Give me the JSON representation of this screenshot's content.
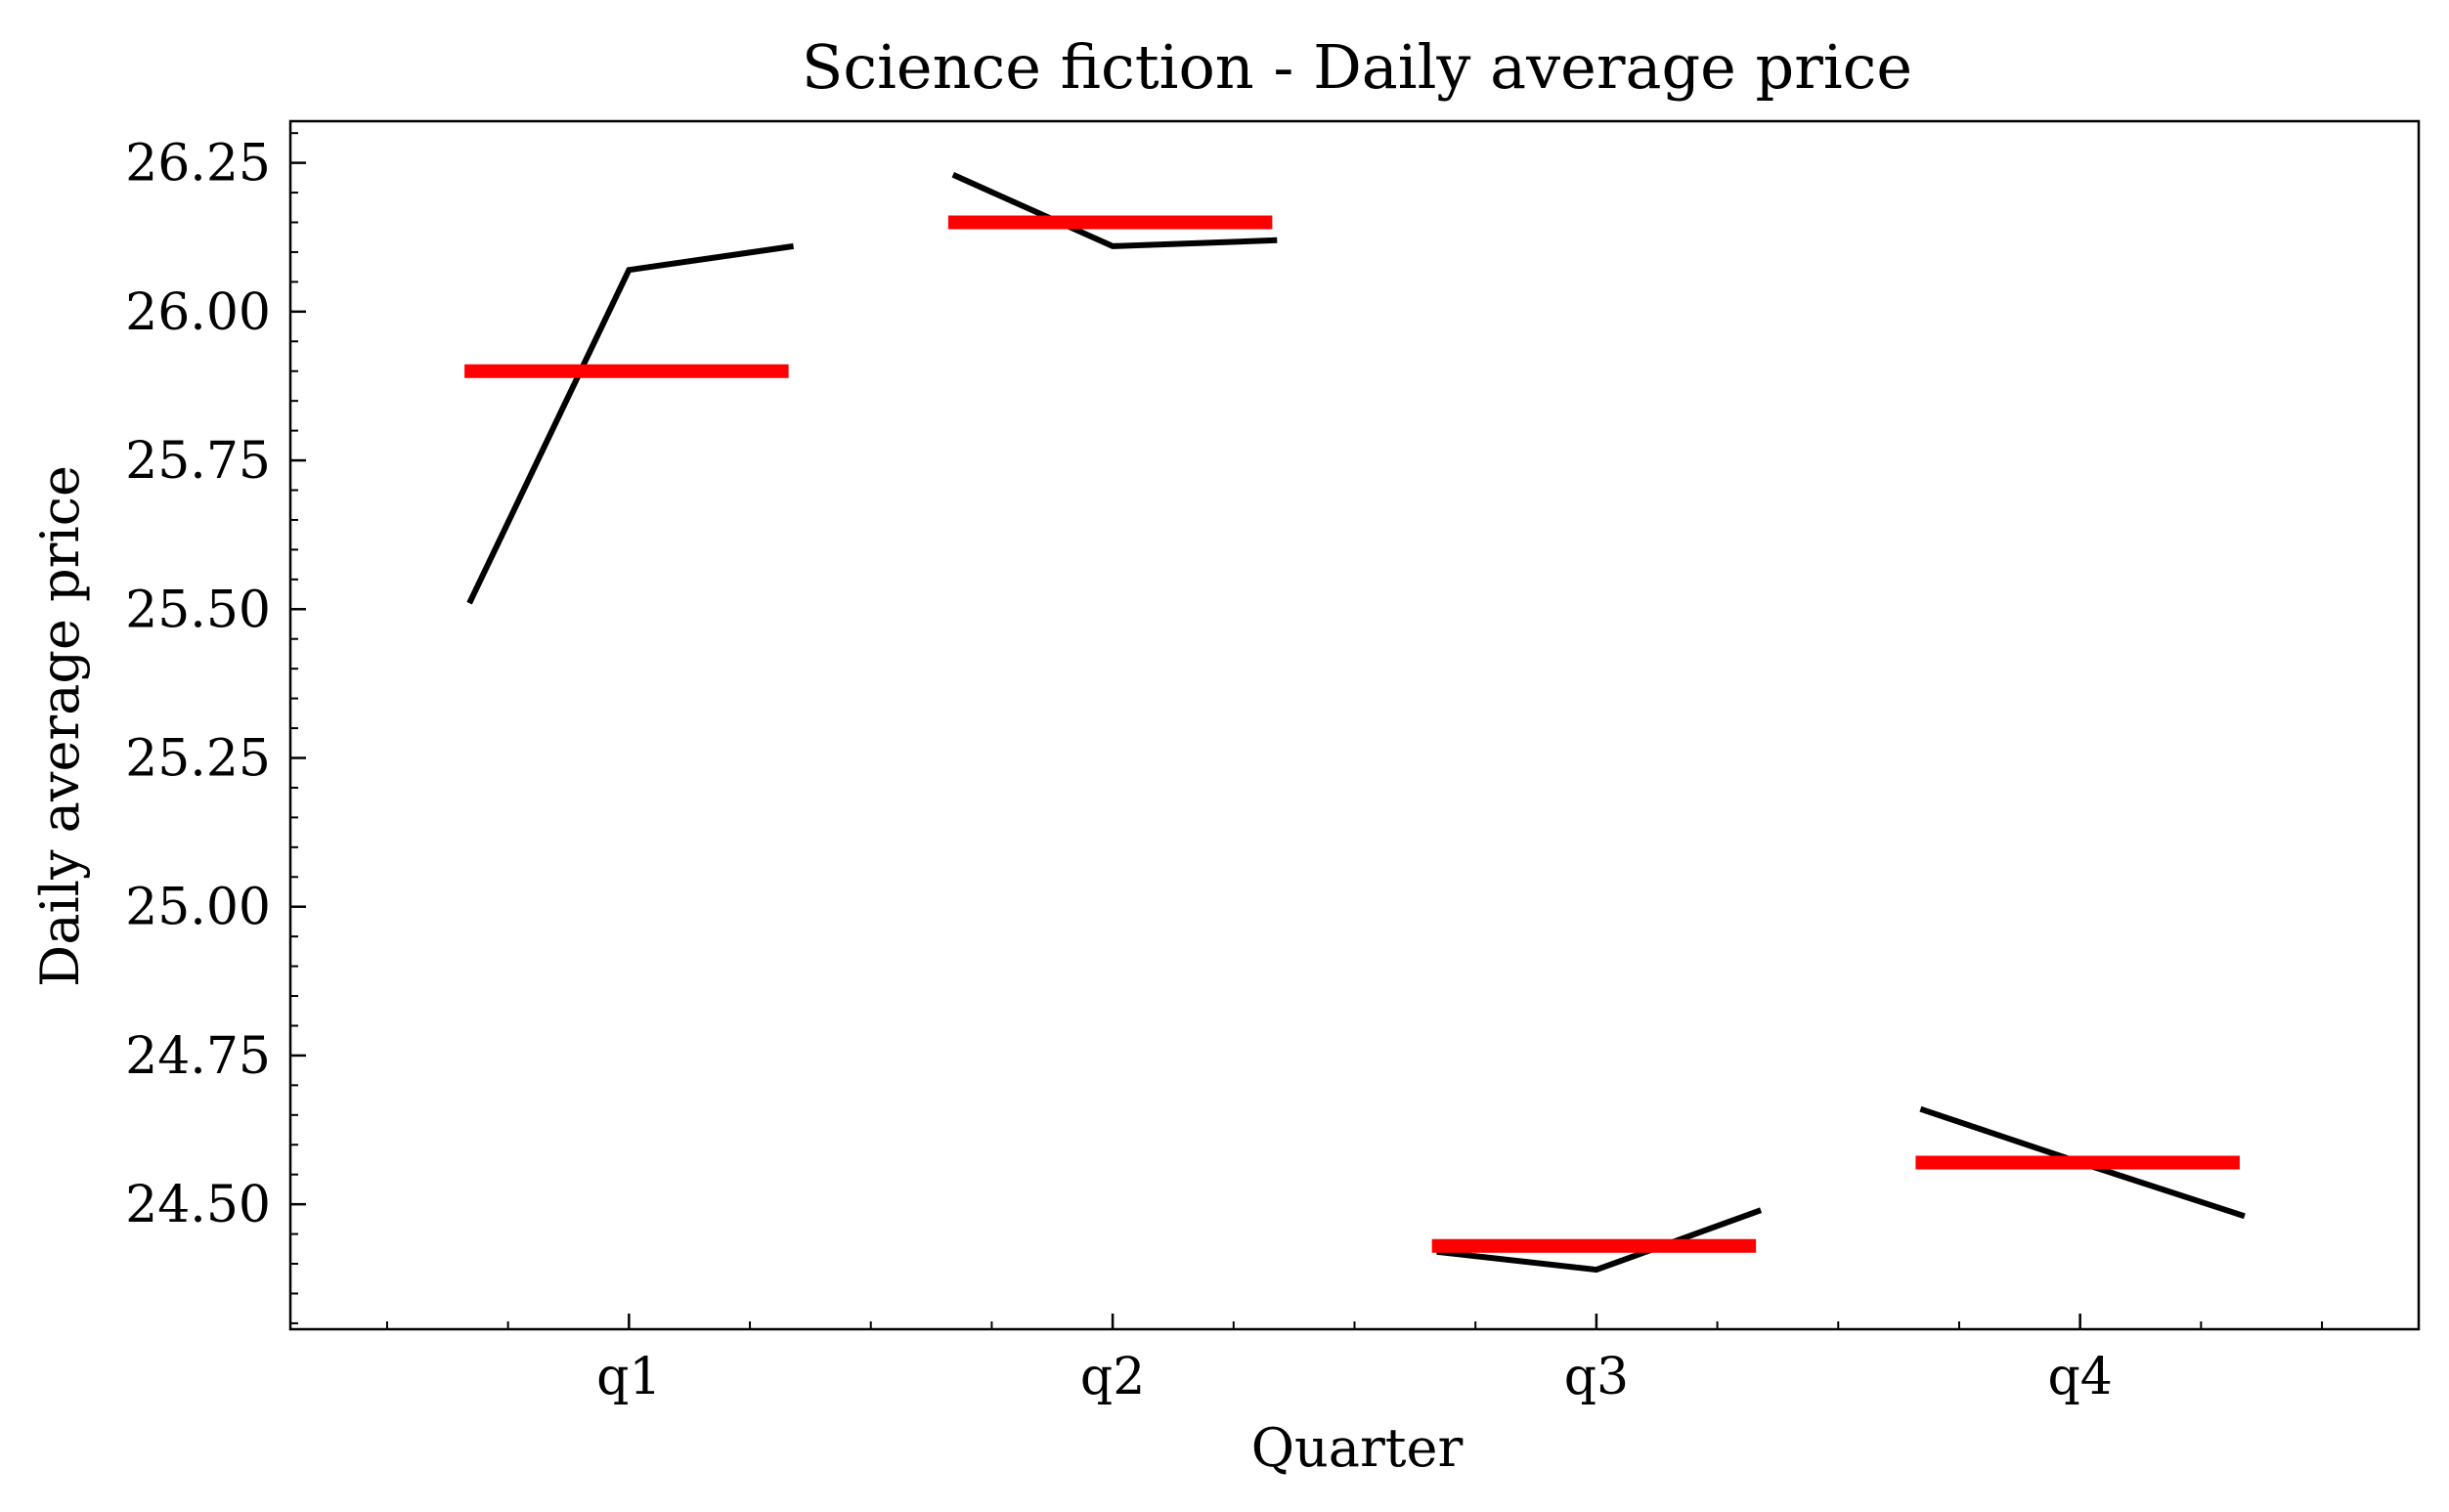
{
  "chart_data": {
    "type": "line",
    "title": "Science fiction - Daily average price",
    "xlabel": "Quarter",
    "ylabel": "Daily average price",
    "categories": [
      "q1",
      "q2",
      "q3",
      "q4"
    ],
    "ylim": [
      24.29,
      26.32
    ],
    "yticks": [
      "24.50",
      "24.75",
      "25.00",
      "25.25",
      "25.50",
      "25.75",
      "26.00",
      "26.25"
    ],
    "series": [
      {
        "color": "#000000",
        "segments": [
          [
            25.51,
            26.07,
            26.11
          ],
          [
            26.23,
            26.11,
            26.12
          ],
          [
            24.42,
            24.39,
            24.49
          ],
          [
            24.66,
            24.57,
            24.48
          ]
        ]
      },
      {
        "color": "#ff0000",
        "means": [
          25.9,
          26.15,
          24.43,
          24.57
        ]
      }
    ]
  }
}
